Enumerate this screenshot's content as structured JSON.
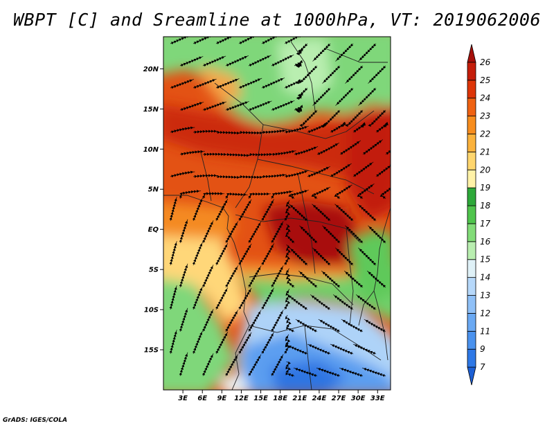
{
  "title": "WBPT [C] and Sreamline at 1000hPa, VT: 2019062006",
  "credit": "GrADS: IGES/COLA",
  "map": {
    "lat_range": [
      -20,
      24
    ],
    "lon_range": [
      0,
      35
    ],
    "lat_ticks": [
      {
        "value": 20,
        "label": "20N"
      },
      {
        "value": 15,
        "label": "15N"
      },
      {
        "value": 10,
        "label": "10N"
      },
      {
        "value": 5,
        "label": "5N"
      },
      {
        "value": 0,
        "label": "EQ"
      },
      {
        "value": -5,
        "label": "5S"
      },
      {
        "value": -10,
        "label": "10S"
      },
      {
        "value": -15,
        "label": "15S"
      }
    ],
    "lon_ticks": [
      {
        "value": 3,
        "label": "3E"
      },
      {
        "value": 6,
        "label": "6E"
      },
      {
        "value": 9,
        "label": "9E"
      },
      {
        "value": 12,
        "label": "12E"
      },
      {
        "value": 15,
        "label": "15E"
      },
      {
        "value": 18,
        "label": "18E"
      },
      {
        "value": 21,
        "label": "21E"
      },
      {
        "value": 24,
        "label": "24E"
      },
      {
        "value": 27,
        "label": "27E"
      },
      {
        "value": 30,
        "label": "30E"
      },
      {
        "value": 33,
        "label": "33E"
      }
    ]
  },
  "colorbar": {
    "levels": [
      "7",
      "9",
      "11",
      "12",
      "13",
      "14",
      "15",
      "16",
      "17",
      "18",
      "19",
      "20",
      "21",
      "22",
      "23",
      "24",
      "25",
      "26"
    ],
    "colors": [
      "#1c5fd4",
      "#2e78e6",
      "#4a92ee",
      "#6aa9f3",
      "#8fc0f7",
      "#b6d8fa",
      "#dff1f7",
      "#b9eeb0",
      "#82dc78",
      "#4fc44c",
      "#2ea93a",
      "#fff2a8",
      "#ffd66e",
      "#fbb23c",
      "#f78d1e",
      "#ef6212",
      "#dd3508",
      "#c41d0a",
      "#a50f0a"
    ]
  },
  "colors": {
    "frame": "#000000",
    "streamline": "#000000"
  }
}
